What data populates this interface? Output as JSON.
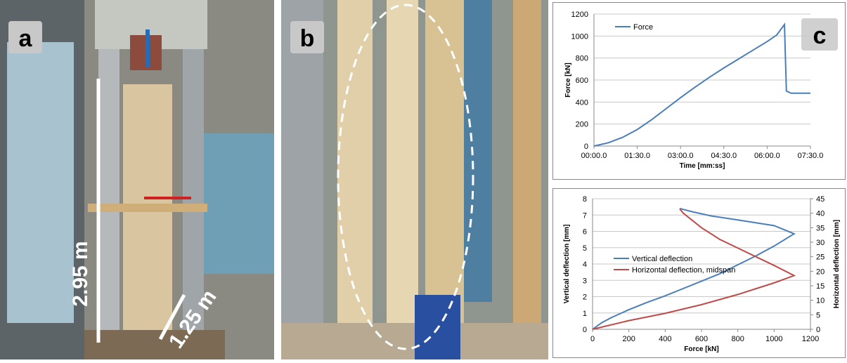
{
  "panel_labels": [
    "a",
    "b",
    "c"
  ],
  "dimensions": [
    "2.95 m",
    "1.25 m"
  ],
  "chart_data": [
    {
      "type": "line",
      "xlabel": "Time [mm:ss]",
      "ylabel": "Force [kN]",
      "xlim": [
        0,
        450
      ],
      "xticks": [
        {
          "value": 0,
          "label": "00:00.0"
        },
        {
          "value": 90,
          "label": "01:30.0"
        },
        {
          "value": 180,
          "label": "03:00.0"
        },
        {
          "value": 270,
          "label": "04:30.0"
        },
        {
          "value": 360,
          "label": "06:00.0"
        },
        {
          "value": 450,
          "label": "07:30.0"
        }
      ],
      "ylim": [
        0,
        1200
      ],
      "yticks": [
        0,
        200,
        400,
        600,
        800,
        1000,
        1200
      ],
      "grid": true,
      "legend": "upper left",
      "series": [
        {
          "name": "Force",
          "color": "#4a7ebb",
          "x": [
            0,
            30,
            60,
            90,
            120,
            150,
            180,
            210,
            240,
            270,
            300,
            330,
            360,
            380,
            396,
            398,
            400,
            410,
            450
          ],
          "values": [
            0,
            30,
            80,
            150,
            240,
            340,
            440,
            535,
            625,
            710,
            790,
            870,
            950,
            1010,
            1105,
            800,
            500,
            480,
            480
          ]
        }
      ]
    },
    {
      "type": "line",
      "xlabel": "Force [kN]",
      "ylabel": "Vertical deflection [mm]",
      "y2label": "Horizontal deflection [mm]",
      "xlim": [
        0,
        1200
      ],
      "xticks": [
        0,
        200,
        400,
        600,
        800,
        1000,
        1200
      ],
      "ylim": [
        0,
        8
      ],
      "yticks": [
        0,
        1,
        2,
        3,
        4,
        5,
        6,
        7,
        8
      ],
      "y2lim": [
        0,
        45
      ],
      "y2ticks": [
        0,
        5,
        10,
        15,
        20,
        25,
        30,
        35,
        40,
        45
      ],
      "grid": true,
      "legend": "center left",
      "series": [
        {
          "name": "Vertical deflection",
          "color": "#4a7ebb",
          "x": [
            0,
            50,
            100,
            200,
            300,
            400,
            500,
            600,
            700,
            800,
            900,
            1000,
            1110,
            1000,
            800,
            650,
            550,
            480
          ],
          "values": [
            0,
            0.4,
            0.7,
            1.2,
            1.65,
            2.05,
            2.5,
            2.95,
            3.4,
            3.95,
            4.5,
            5.1,
            5.85,
            6.35,
            6.7,
            6.95,
            7.2,
            7.4
          ]
        },
        {
          "name": "Horizontal deflection, midspan",
          "color": "#be4b48",
          "axis": "y2",
          "x": [
            0,
            200,
            400,
            600,
            800,
            900,
            1000,
            1110,
            1000,
            900,
            800,
            700,
            600,
            500,
            480
          ],
          "values": [
            0,
            3,
            5.5,
            8.5,
            12,
            14,
            16,
            18.5,
            22,
            25,
            28,
            31,
            35,
            40,
            41.5
          ]
        }
      ]
    }
  ]
}
